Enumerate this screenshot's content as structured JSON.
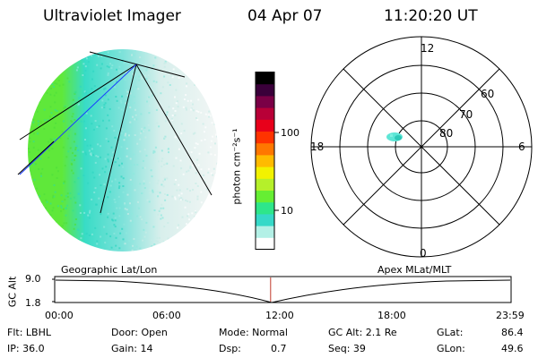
{
  "header": {
    "instrument": "Ultraviolet Imager",
    "date": "04 Apr 07",
    "time": "11:20:20 UT"
  },
  "colorbar": {
    "unit_label": "photon cm⁻²s⁻¹",
    "ticks": [
      "100",
      "10"
    ],
    "colors": [
      "#ffffff",
      "#b3f0e6",
      "#36d9c8",
      "#2ee68a",
      "#66ee33",
      "#b5f02a",
      "#f2f200",
      "#ffbb00",
      "#ff7700",
      "#ff3300",
      "#e8001a",
      "#b80037",
      "#7a0046",
      "#3a003a",
      "#000000"
    ]
  },
  "polar": {
    "hour_labels": {
      "top": "12",
      "left": "18",
      "right": "6",
      "bottom": "0"
    },
    "lat_labels": [
      "60",
      "70",
      "80"
    ]
  },
  "timeline": {
    "left_label": "Geographic Lat/Lon",
    "right_label": "Apex MLat/MLT",
    "y_axis_title": "GC Alt",
    "y_ticks": [
      "9.0",
      "1.8"
    ],
    "x_ticks": [
      "00:00",
      "06:00",
      "12:00",
      "18:00",
      "23:59"
    ],
    "current_time_fraction": 0.473
  },
  "info": {
    "filter": "Flt: LBHL",
    "ip": "IP: 36.0",
    "door": "Door: Open",
    "gain": "Gain: 14",
    "mode": "Mode: Normal",
    "dsp_label": "Dsp:",
    "dsp_value": "0.7",
    "gc_alt": "GC Alt: 2.1 Re",
    "seq": "Seq: 39",
    "glat_label": "GLat:",
    "glat_value": "86.4",
    "glon_label": "GLon:",
    "glon_value": "49.6"
  }
}
